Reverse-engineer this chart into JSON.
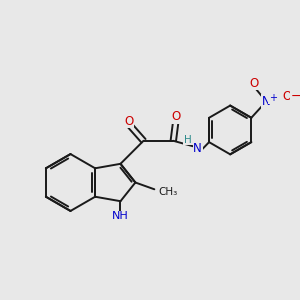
{
  "bg_color": "#e8e8e8",
  "bond_color": "#1a1a1a",
  "bond_width": 1.4,
  "N_color": "#0000cc",
  "O_color": "#cc0000",
  "NH_color": "#2e8b8b",
  "fig_size": [
    3.0,
    3.0
  ],
  "dpi": 100,
  "xlim": [
    0,
    10
  ],
  "ylim": [
    0,
    10
  ]
}
